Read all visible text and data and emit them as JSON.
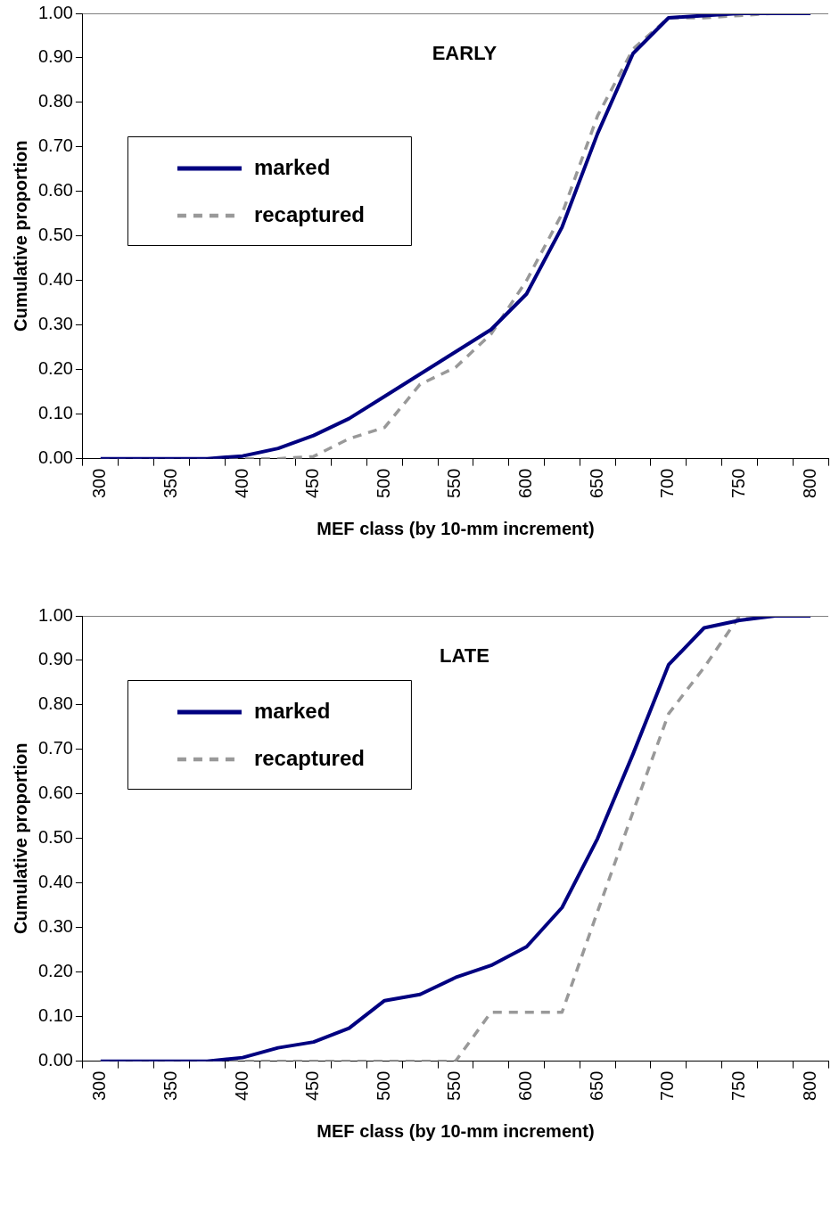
{
  "chart_data": [
    {
      "type": "line",
      "title": "EARLY",
      "xlabel": "MEF class (by 10-mm increment)",
      "ylabel": "Cumulative proportion",
      "categories": [
        "300",
        null,
        "350",
        null,
        "400",
        null,
        "450",
        null,
        "500",
        null,
        "550",
        null,
        "600",
        null,
        "650",
        null,
        "700",
        null,
        "750",
        null,
        "800"
      ],
      "series": [
        {
          "name": "marked",
          "color": "#000080",
          "line_style": "solid",
          "values": [
            0,
            0,
            0,
            0,
            0.006,
            0.023,
            0.052,
            0.09,
            0.14,
            0.19,
            0.24,
            0.29,
            0.37,
            0.52,
            0.73,
            0.91,
            0.99,
            0.995,
            1.0,
            1.0,
            1.0
          ]
        },
        {
          "name": "recaptured",
          "color": "#999999",
          "line_style": "dashed",
          "values": [
            0,
            0,
            0,
            0,
            0,
            0,
            0.005,
            0.045,
            0.07,
            0.167,
            0.205,
            0.28,
            0.4,
            0.55,
            0.77,
            0.92,
            0.99,
            0.99,
            0.995,
            1.0,
            1.0
          ]
        }
      ],
      "ylim": [
        0,
        1
      ],
      "yticks": [
        {
          "value": 0,
          "label": "0.00"
        },
        {
          "value": 0.1,
          "label": "0.10"
        },
        {
          "value": 0.2,
          "label": "0.20"
        },
        {
          "value": 0.3,
          "label": "0.30"
        },
        {
          "value": 0.4,
          "label": "0.40"
        },
        {
          "value": 0.5,
          "label": "0.50"
        },
        {
          "value": 0.6,
          "label": "0.60"
        },
        {
          "value": 0.7,
          "label": "0.70"
        },
        {
          "value": 0.8,
          "label": "0.80"
        },
        {
          "value": 0.9,
          "label": "0.90"
        },
        {
          "value": 1,
          "label": "1.00"
        }
      ],
      "grid": false,
      "legend": "top left",
      "marker": "none"
    },
    {
      "type": "line",
      "title": "LATE",
      "xlabel": "MEF class (by 10-mm increment)",
      "ylabel": "Cumulative proportion",
      "categories": [
        "300",
        null,
        "350",
        null,
        "400",
        null,
        "450",
        null,
        "500",
        null,
        "550",
        null,
        "600",
        null,
        "650",
        null,
        "700",
        null,
        "750",
        null,
        "800"
      ],
      "series": [
        {
          "name": "marked",
          "color": "#000080",
          "line_style": "solid",
          "values": [
            0,
            0,
            0,
            0,
            0.008,
            0.03,
            0.043,
            0.074,
            0.136,
            0.15,
            0.188,
            0.215,
            0.257,
            0.345,
            0.5,
            0.69,
            0.89,
            0.973,
            0.99,
            1.0,
            1.0
          ]
        },
        {
          "name": "recaptured",
          "color": "#999999",
          "line_style": "dashed",
          "values": [
            0,
            0,
            0,
            0,
            0,
            0,
            0,
            0,
            0,
            0,
            0,
            0.11,
            0.11,
            0.11,
            0.336,
            0.56,
            0.78,
            0.884,
            1.0,
            1.0,
            1.0
          ]
        }
      ],
      "ylim": [
        0,
        1
      ],
      "yticks": [
        {
          "value": 0,
          "label": "0.00"
        },
        {
          "value": 0.1,
          "label": "0.10"
        },
        {
          "value": 0.2,
          "label": "0.20"
        },
        {
          "value": 0.3,
          "label": "0.30"
        },
        {
          "value": 0.4,
          "label": "0.40"
        },
        {
          "value": 0.5,
          "label": "0.50"
        },
        {
          "value": 0.6,
          "label": "0.60"
        },
        {
          "value": 0.7,
          "label": "0.70"
        },
        {
          "value": 0.8,
          "label": "0.80"
        },
        {
          "value": 0.9,
          "label": "0.90"
        },
        {
          "value": 1,
          "label": "1.00"
        }
      ],
      "grid": false,
      "legend": "top left",
      "marker": "none"
    }
  ]
}
